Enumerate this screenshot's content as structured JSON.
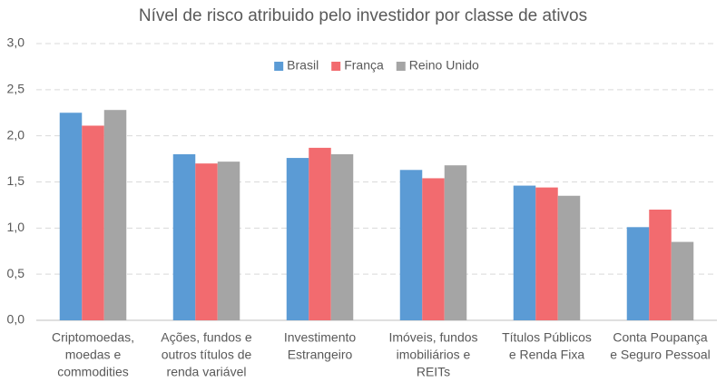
{
  "chart_data": {
    "type": "bar",
    "title": "Nível de risco atribuido pelo investidor por classe de ativos",
    "categories": [
      [
        "Criptomoedas,",
        "moedas e",
        "commodities"
      ],
      [
        "Ações, fundos e",
        "outros títulos de",
        "renda variável"
      ],
      [
        "Investimento",
        "Estrangeiro"
      ],
      [
        "Imóveis, fundos",
        "imobiliários e",
        "REITs"
      ],
      [
        "Títulos Públicos",
        "e Renda Fixa"
      ],
      [
        "Conta Poupança",
        "e Seguro Pessoal"
      ]
    ],
    "series": [
      {
        "name": "Brasil",
        "color": "#5b9bd5",
        "values": [
          2.25,
          1.8,
          1.76,
          1.63,
          1.46,
          1.01
        ]
      },
      {
        "name": "França",
        "color": "#f26b6f",
        "values": [
          2.11,
          1.7,
          1.87,
          1.54,
          1.44,
          1.2
        ]
      },
      {
        "name": "Reino Unido",
        "color": "#a5a5a5",
        "values": [
          2.28,
          1.72,
          1.8,
          1.68,
          1.35,
          0.85
        ]
      }
    ],
    "ylim": [
      0,
      3
    ],
    "yticks": [
      {
        "value": 0,
        "label": "0,0"
      },
      {
        "value": 0.5,
        "label": "0,5"
      },
      {
        "value": 1,
        "label": "1,0"
      },
      {
        "value": 1.5,
        "label": "1,5"
      },
      {
        "value": 2,
        "label": "2,0"
      },
      {
        "value": 2.5,
        "label": "2,5"
      },
      {
        "value": 3,
        "label": "3,0"
      }
    ],
    "grid": true,
    "legend": "top"
  }
}
